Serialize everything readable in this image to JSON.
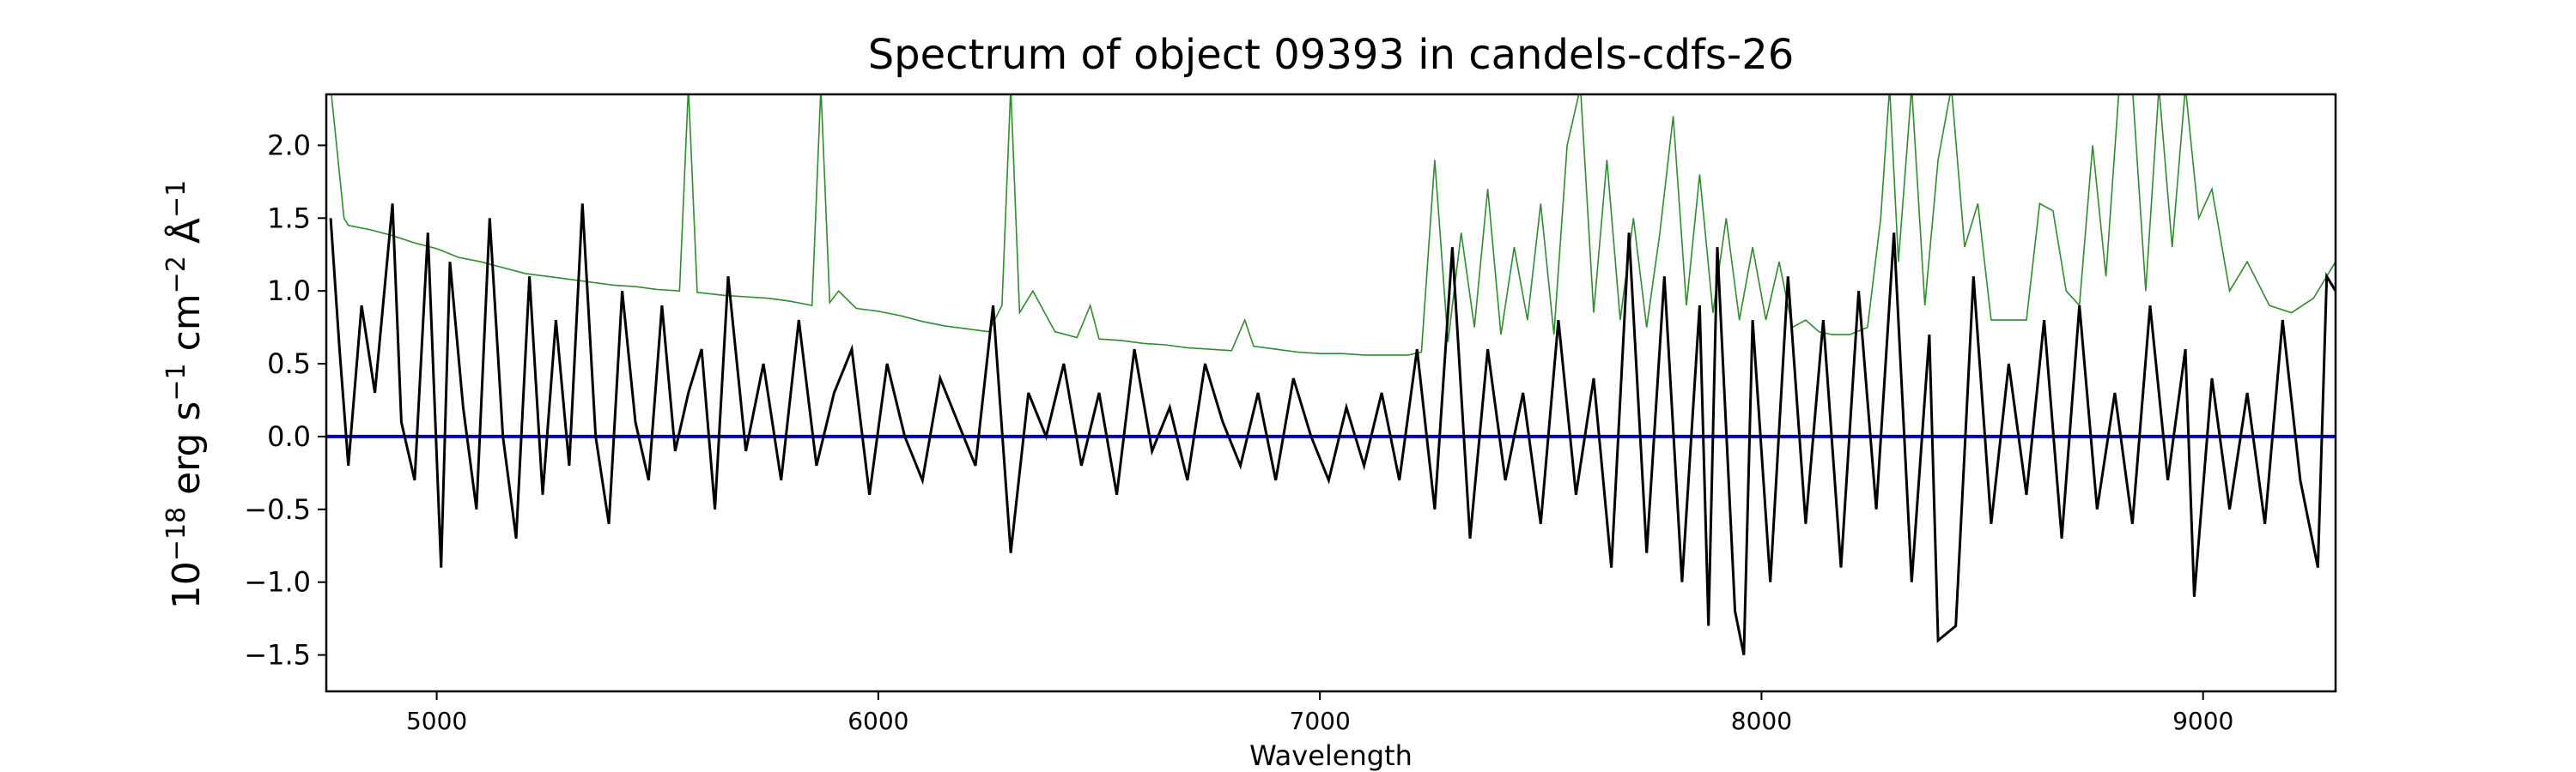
{
  "chart_data": {
    "type": "line",
    "title": "Spectrum of object 09393 in candels-cdfs-26",
    "xlabel": "Wavelength",
    "ylabel_parts": [
      "10",
      "−18",
      " erg s",
      "−1",
      " cm",
      "−2",
      " Å",
      "−1"
    ],
    "xlim": [
      4750,
      9300
    ],
    "ylim": [
      -1.75,
      2.35
    ],
    "xticks": [
      5000,
      6000,
      7000,
      8000,
      9000
    ],
    "yticks": [
      -1.5,
      -1.0,
      -0.5,
      0.0,
      0.5,
      1.0,
      1.5,
      2.0
    ],
    "grid": false,
    "colors": {
      "flux": "#000000",
      "error": "#2e8b2e",
      "zero": "#0000cc"
    },
    "zero_line": 0.0,
    "series": [
      {
        "id": "flux",
        "x": [
          4760,
          4780,
          4800,
          4830,
          4860,
          4900,
          4920,
          4950,
          4980,
          5010,
          5030,
          5060,
          5090,
          5120,
          5150,
          5180,
          5210,
          5240,
          5270,
          5300,
          5330,
          5360,
          5390,
          5420,
          5450,
          5480,
          5510,
          5540,
          5570,
          5600,
          5630,
          5660,
          5700,
          5740,
          5780,
          5820,
          5860,
          5900,
          5940,
          5980,
          6020,
          6060,
          6100,
          6140,
          6180,
          6220,
          6260,
          6300,
          6340,
          6380,
          6420,
          6460,
          6500,
          6540,
          6580,
          6620,
          6660,
          6700,
          6740,
          6780,
          6820,
          6860,
          6900,
          6940,
          6980,
          7020,
          7060,
          7100,
          7140,
          7180,
          7220,
          7260,
          7300,
          7340,
          7380,
          7420,
          7460,
          7500,
          7540,
          7580,
          7620,
          7660,
          7700,
          7740,
          7780,
          7820,
          7860,
          7880,
          7900,
          7940,
          7960,
          7980,
          8020,
          8060,
          8100,
          8140,
          8180,
          8220,
          8260,
          8300,
          8340,
          8380,
          8400,
          8440,
          8480,
          8520,
          8560,
          8600,
          8640,
          8680,
          8720,
          8760,
          8800,
          8840,
          8880,
          8920,
          8960,
          8980,
          9020,
          9060,
          9100,
          9140,
          9180,
          9220,
          9260,
          9280,
          9300
        ],
        "y": [
          1.5,
          0.6,
          -0.2,
          0.9,
          0.3,
          1.6,
          0.1,
          -0.3,
          1.4,
          -0.9,
          1.2,
          0.2,
          -0.5,
          1.5,
          0.0,
          -0.7,
          1.1,
          -0.4,
          0.8,
          -0.2,
          1.6,
          0.0,
          -0.6,
          1.0,
          0.1,
          -0.3,
          0.9,
          -0.1,
          0.3,
          0.6,
          -0.5,
          1.1,
          -0.1,
          0.5,
          -0.3,
          0.8,
          -0.2,
          0.3,
          0.6,
          -0.4,
          0.5,
          0.0,
          -0.3,
          0.4,
          0.1,
          -0.2,
          0.9,
          -0.8,
          0.3,
          0.0,
          0.5,
          -0.2,
          0.3,
          -0.4,
          0.6,
          -0.1,
          0.2,
          -0.3,
          0.5,
          0.1,
          -0.2,
          0.3,
          -0.3,
          0.4,
          0.0,
          -0.3,
          0.2,
          -0.2,
          0.3,
          -0.3,
          0.6,
          -0.5,
          1.3,
          -0.7,
          0.6,
          -0.3,
          0.3,
          -0.6,
          0.8,
          -0.4,
          0.4,
          -0.9,
          1.4,
          -0.8,
          1.1,
          -1.0,
          0.9,
          -1.3,
          1.3,
          -1.2,
          -1.5,
          0.8,
          -1.0,
          1.1,
          -0.6,
          0.8,
          -0.9,
          1.0,
          -0.5,
          1.4,
          -1.0,
          0.7,
          -1.4,
          -1.3,
          1.1,
          -0.6,
          0.5,
          -0.4,
          0.8,
          -0.7,
          0.9,
          -0.5,
          0.3,
          -0.6,
          0.9,
          -0.3,
          0.6,
          -1.1,
          0.4,
          -0.5,
          0.3,
          -0.6,
          0.8,
          -0.3,
          -0.9,
          1.1,
          1.0
        ]
      },
      {
        "id": "error",
        "x": [
          4760,
          4790,
          4800,
          4850,
          4900,
          4950,
          5000,
          5050,
          5100,
          5150,
          5200,
          5250,
          5300,
          5350,
          5400,
          5450,
          5500,
          5550,
          5570,
          5590,
          5650,
          5700,
          5750,
          5800,
          5850,
          5870,
          5890,
          5910,
          5950,
          6000,
          6050,
          6100,
          6150,
          6200,
          6250,
          6280,
          6300,
          6320,
          6350,
          6400,
          6450,
          6480,
          6500,
          6550,
          6600,
          6650,
          6700,
          6750,
          6800,
          6830,
          6850,
          6900,
          6950,
          7000,
          7050,
          7100,
          7150,
          7200,
          7230,
          7260,
          7290,
          7320,
          7350,
          7380,
          7410,
          7440,
          7470,
          7500,
          7530,
          7560,
          7590,
          7620,
          7650,
          7680,
          7710,
          7740,
          7770,
          7800,
          7830,
          7860,
          7890,
          7920,
          7950,
          7980,
          8010,
          8040,
          8070,
          8100,
          8130,
          8160,
          8200,
          8240,
          8270,
          8290,
          8310,
          8340,
          8370,
          8400,
          8430,
          8460,
          8490,
          8520,
          8560,
          8600,
          8630,
          8660,
          8690,
          8720,
          8750,
          8780,
          8810,
          8840,
          8870,
          8900,
          8930,
          8960,
          8990,
          9020,
          9060,
          9100,
          9150,
          9200,
          9250,
          9300
        ],
        "y": [
          2.4,
          1.5,
          1.45,
          1.42,
          1.38,
          1.33,
          1.29,
          1.23,
          1.2,
          1.16,
          1.12,
          1.1,
          1.08,
          1.06,
          1.04,
          1.03,
          1.01,
          1.0,
          2.4,
          0.99,
          0.97,
          0.96,
          0.95,
          0.93,
          0.9,
          2.4,
          0.92,
          1.0,
          0.88,
          0.86,
          0.83,
          0.79,
          0.76,
          0.74,
          0.72,
          0.9,
          2.4,
          0.85,
          1.0,
          0.72,
          0.68,
          0.9,
          0.67,
          0.66,
          0.64,
          0.63,
          0.61,
          0.6,
          0.59,
          0.8,
          0.62,
          0.6,
          0.58,
          0.57,
          0.57,
          0.56,
          0.56,
          0.56,
          0.58,
          1.9,
          0.65,
          1.4,
          0.75,
          1.7,
          0.7,
          1.3,
          0.8,
          1.6,
          0.7,
          2.0,
          2.4,
          0.85,
          1.9,
          0.8,
          1.5,
          0.75,
          1.4,
          2.2,
          0.9,
          1.8,
          0.85,
          1.5,
          0.8,
          1.3,
          0.8,
          1.2,
          0.75,
          0.8,
          0.72,
          0.7,
          0.7,
          0.75,
          1.5,
          2.4,
          1.2,
          2.4,
          0.9,
          1.9,
          2.4,
          1.3,
          1.6,
          0.8,
          0.8,
          0.8,
          1.6,
          1.55,
          1.0,
          0.9,
          2.0,
          1.1,
          2.4,
          2.4,
          1.0,
          2.4,
          1.3,
          2.4,
          1.5,
          1.7,
          1.0,
          1.2,
          0.9,
          0.85,
          0.95,
          1.2
        ]
      }
    ]
  }
}
